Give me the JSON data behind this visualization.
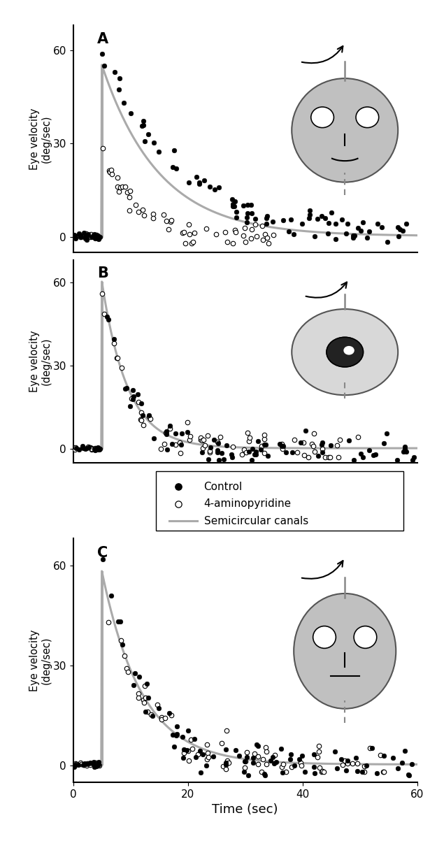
{
  "xlim": [
    0,
    60
  ],
  "ylim": [
    -5,
    68
  ],
  "yticks": [
    0,
    30,
    60
  ],
  "xticks": [
    0,
    20,
    40,
    60
  ],
  "xlabel": "Time (sec)",
  "ylabel": "Eye velocity\n(deg/sec)",
  "panel_labels": [
    "A",
    "B",
    "C"
  ],
  "gray_color": "#aaaaaa",
  "dot_color": "#111111",
  "bg_color": "#ffffff",
  "legend_labels": [
    "Control",
    "4-aminopyridine",
    "Semicircular canals"
  ],
  "tau_A_filled": 14.0,
  "tau_A_open": 6.0,
  "tau_B": 4.5,
  "tau_C": 7.0,
  "peak_A_filled": 58,
  "peak_A_open": 27,
  "peak_B_filled": 60,
  "peak_B_open": 60,
  "peak_C_filled": 62,
  "peak_C_open": 58,
  "onset_time": 5.0,
  "gray_A_peak": 55,
  "gray_A_tau": 10.0,
  "gray_B_peak": 60,
  "gray_B_tau": 4.5,
  "gray_C_peak": 58,
  "gray_C_tau": 7.0
}
